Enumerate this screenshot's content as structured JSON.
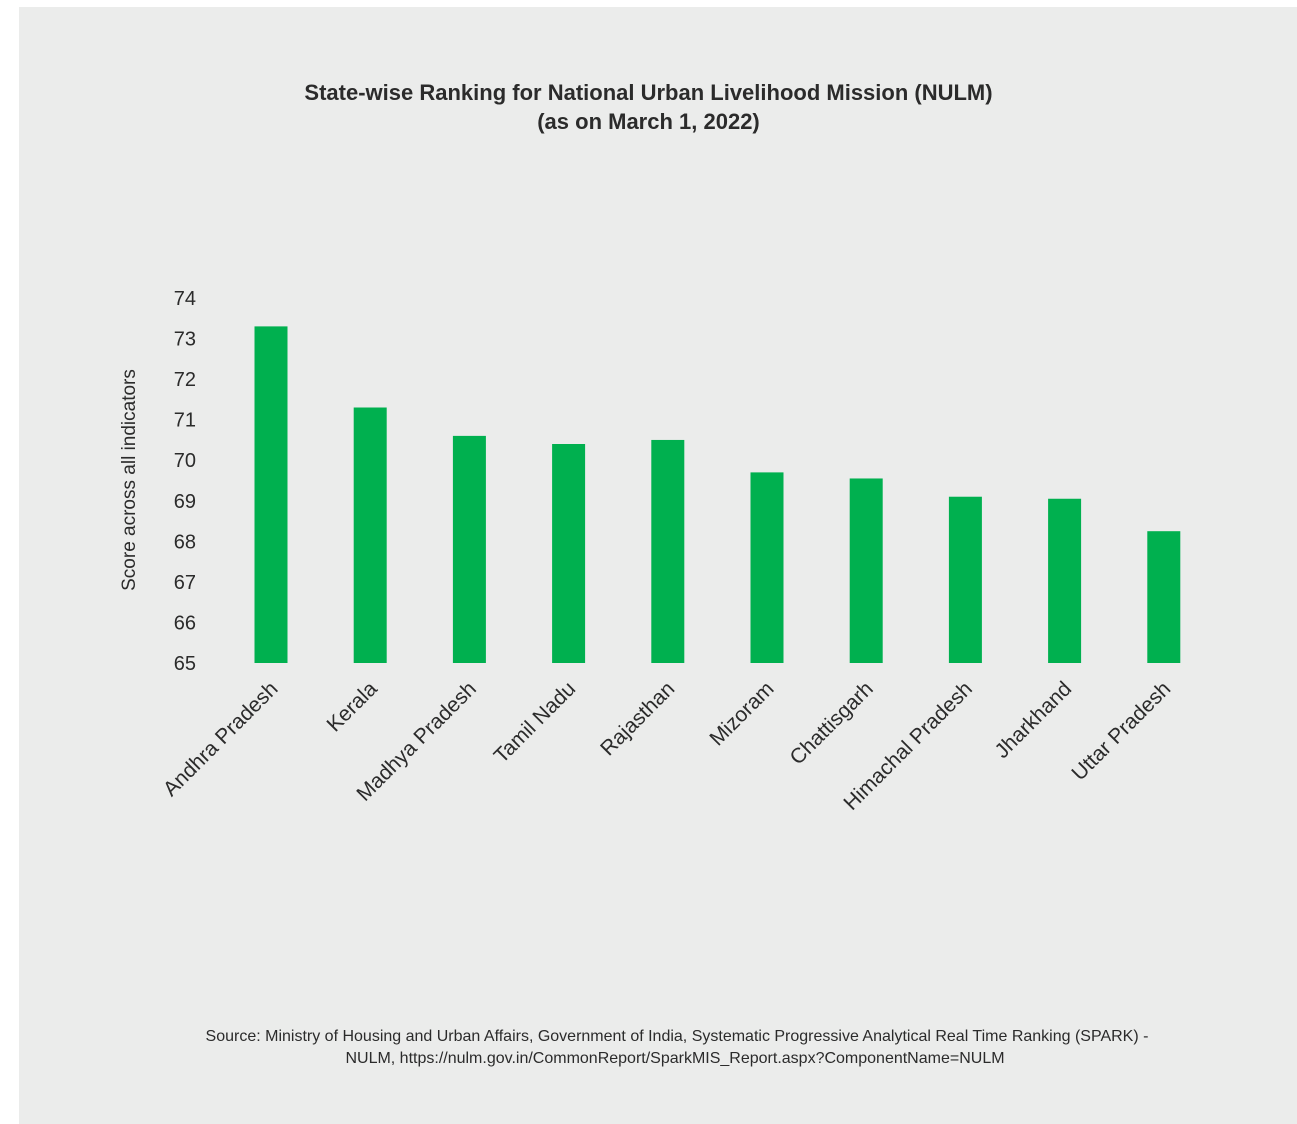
{
  "chart_data": {
    "type": "bar",
    "title": "State-wise Ranking for National Urban Livelihood Mission (NULM)",
    "subtitle": "(as on March 1, 2022)",
    "xlabel": "",
    "ylabel": "Score across all indicators",
    "ylim": [
      65,
      74
    ],
    "yticks": [
      "65",
      "66",
      "67",
      "68",
      "69",
      "70",
      "71",
      "72",
      "73",
      "74"
    ],
    "grid": false,
    "bar_color": "#00b04f",
    "categories": [
      "Andhra Pradesh",
      "Kerala",
      "Madhya Pradesh",
      "Tamil Nadu",
      "Rajasthan",
      "Mizoram",
      "Chattisgarh",
      "Himachal Pradesh",
      "Jharkhand",
      "Uttar Pradesh"
    ],
    "values": [
      73.3,
      71.3,
      70.6,
      70.4,
      70.5,
      69.7,
      69.55,
      69.1,
      69.05,
      68.25
    ]
  },
  "source": {
    "line1": "Source: Ministry of Housing and Urban Affairs, Government of India, Systematic Progressive Analytical Real Time Ranking (SPARK) -",
    "line2": "NULM, https://nulm.gov.in/CommonReport/SparkMIS_Report.aspx?ComponentName=NULM"
  }
}
